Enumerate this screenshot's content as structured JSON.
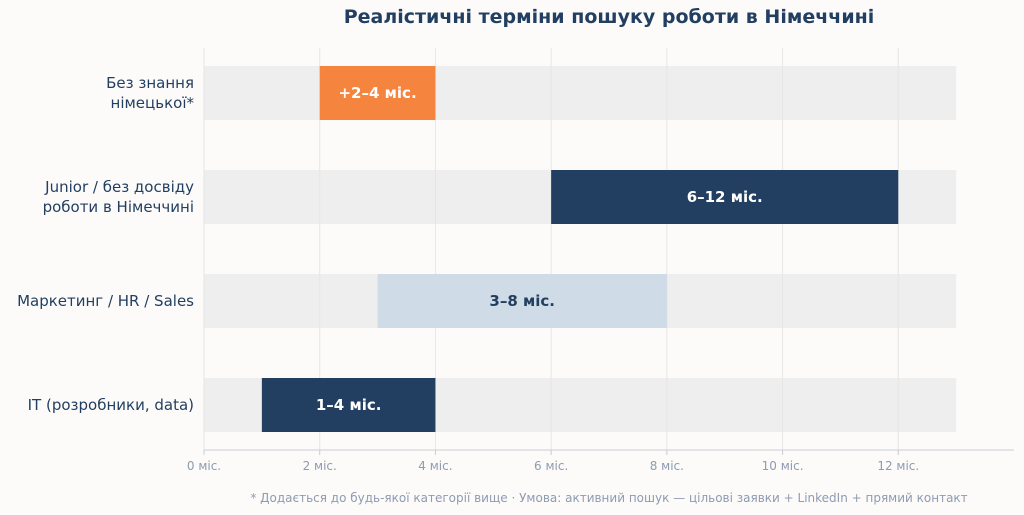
{
  "chart_data": {
    "type": "bar",
    "orientation": "horizontal-range",
    "title": "Реалістичні терміни пошуку роботи в Німеччині",
    "xlim": [
      0,
      14
    ],
    "track_end": 13,
    "grid": "vertical",
    "x_ticks": [
      {
        "value": 0,
        "label": "0 міс."
      },
      {
        "value": 2,
        "label": "2 міс."
      },
      {
        "value": 4,
        "label": "4 міс."
      },
      {
        "value": 6,
        "label": "6 міс."
      },
      {
        "value": 8,
        "label": "8 міс."
      },
      {
        "value": 10,
        "label": "10 міс."
      },
      {
        "value": 12,
        "label": "12 міс."
      }
    ],
    "categories": [
      [
        "Без знання",
        "німецької*"
      ],
      [
        "Junior / без досвіду",
        "роботи в Німеччині"
      ],
      [
        "Маркетинг / HR / Sales"
      ],
      [
        "IT (розробники, data)"
      ]
    ],
    "bars": [
      {
        "start": 2,
        "end": 4,
        "label": "+2–4 міс.",
        "color": "#f5843f",
        "label_color": "#ffffff"
      },
      {
        "start": 6,
        "end": 12,
        "label": "6–12 міс.",
        "color": "#223f61",
        "label_color": "#ffffff"
      },
      {
        "start": 3,
        "end": 8,
        "label": "3–8 міс.",
        "color": "#cfdbe7",
        "label_color": "#223f61"
      },
      {
        "start": 1,
        "end": 4,
        "label": "1–4 міс.",
        "color": "#223f61",
        "label_color": "#ffffff"
      }
    ],
    "footnote": "* Додається до будь-якої категорії вище  ·  Умова: активний пошук — цільові заявки + LinkedIn + прямий контакт"
  },
  "colors": {
    "title": "#223f61",
    "track": "#eeeeee",
    "grid": "#e6e6e6",
    "axis": "#c8ccd4",
    "tick_text": "#8e9bb0",
    "category_text": "#223f61"
  }
}
